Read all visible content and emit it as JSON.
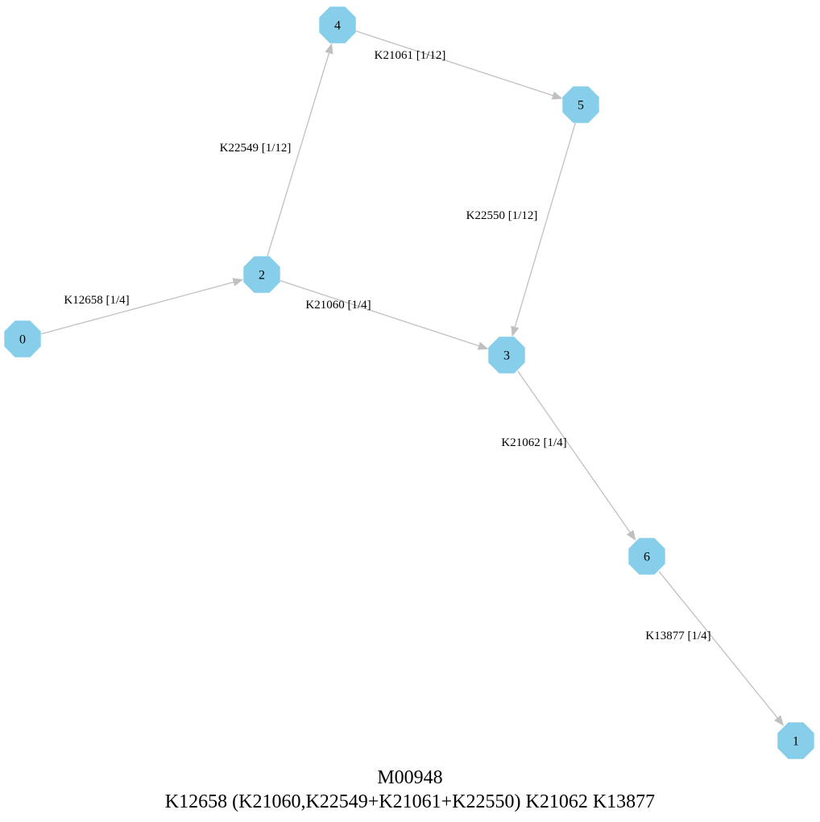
{
  "diagram": {
    "title": "M00948",
    "expression": "K12658 (K21060,K22549+K21061+K22550) K21062 K13877",
    "colors": {
      "node_fill": "#87ceeb",
      "edge": "#c0c0c0",
      "text": "#000000"
    },
    "nodes": [
      {
        "id": "0",
        "label": "0"
      },
      {
        "id": "1",
        "label": "1"
      },
      {
        "id": "2",
        "label": "2"
      },
      {
        "id": "3",
        "label": "3"
      },
      {
        "id": "4",
        "label": "4"
      },
      {
        "id": "5",
        "label": "5"
      },
      {
        "id": "6",
        "label": "6"
      }
    ],
    "edges": [
      {
        "from": "0",
        "to": "2",
        "label": "K12658 [1/4]"
      },
      {
        "from": "2",
        "to": "4",
        "label": "K22549 [1/12]"
      },
      {
        "from": "4",
        "to": "5",
        "label": "K21061 [1/12]"
      },
      {
        "from": "5",
        "to": "3",
        "label": "K22550 [1/12]"
      },
      {
        "from": "2",
        "to": "3",
        "label": "K21060 [1/4]"
      },
      {
        "from": "3",
        "to": "6",
        "label": "K21062 [1/4]"
      },
      {
        "from": "6",
        "to": "1",
        "label": "K13877 [1/4]"
      }
    ]
  }
}
